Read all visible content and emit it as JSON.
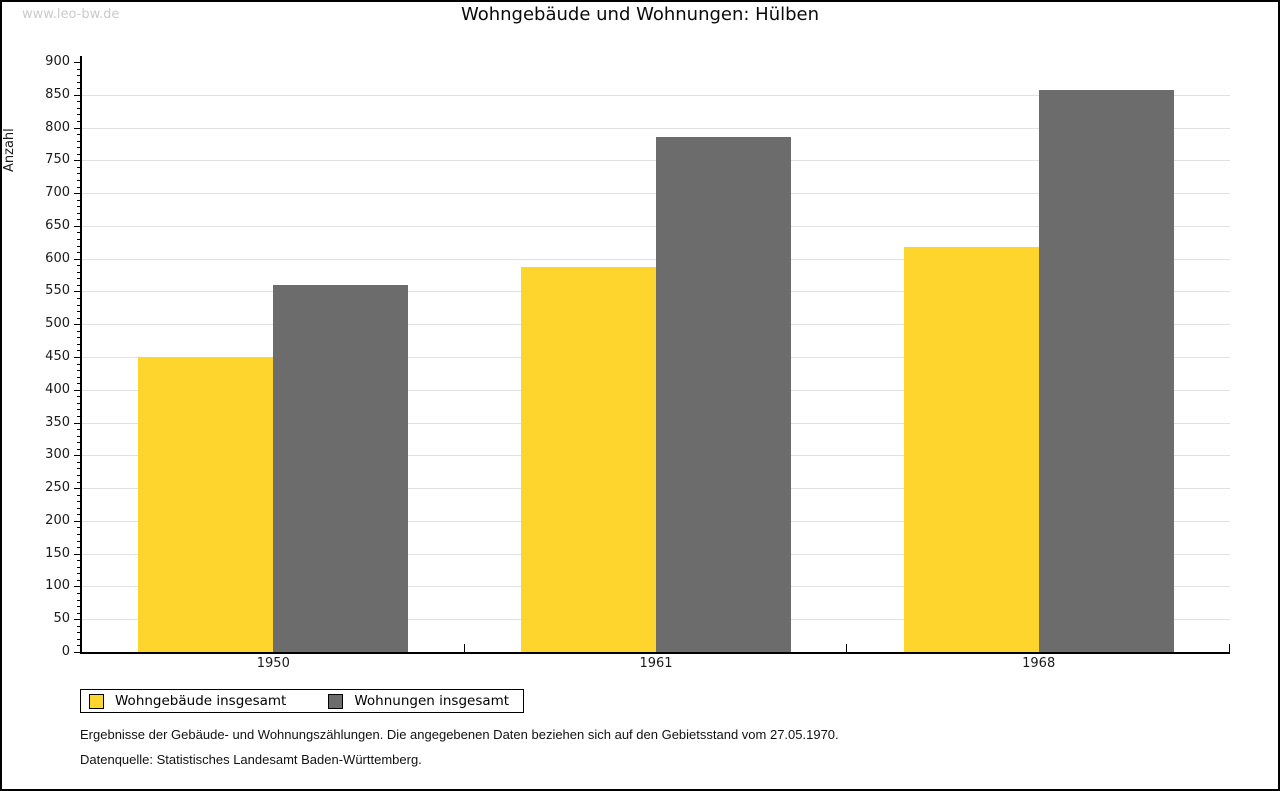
{
  "watermark": "www.leo-bw.de",
  "title": "Wohngebäude und Wohnungen: Hülben",
  "footnotes": [
    "Ergebnisse der Gebäude- und Wohnungszählungen. Die angegebenen Daten beziehen sich auf den Gebietsstand vom 27.05.1970.",
    "Datenquelle: Statistisches Landesamt Baden-Württemberg."
  ],
  "chart_data": {
    "type": "bar",
    "title": "Wohngebäude und Wohnungen: Hülben",
    "categories": [
      "1950",
      "1961",
      "1968"
    ],
    "series": [
      {
        "name": "Wohngebäude insgesamt",
        "color": "#FDD52D",
        "values": [
          450,
          588,
          618
        ]
      },
      {
        "name": "Wohnungen insgesamt",
        "color": "#6C6C6C",
        "values": [
          560,
          785,
          858
        ]
      }
    ],
    "xlabel": "",
    "ylabel": "Anzahl",
    "ylim": [
      0,
      900
    ],
    "y_major_step": 50,
    "y_minor_step": 10,
    "y_ticks": [
      0,
      50,
      100,
      150,
      200,
      250,
      300,
      350,
      400,
      450,
      500,
      550,
      600,
      650,
      700,
      750,
      800,
      850,
      900
    ],
    "grid": true,
    "grid_color": "#e2e2e2",
    "legend_position": "bottom-left"
  }
}
